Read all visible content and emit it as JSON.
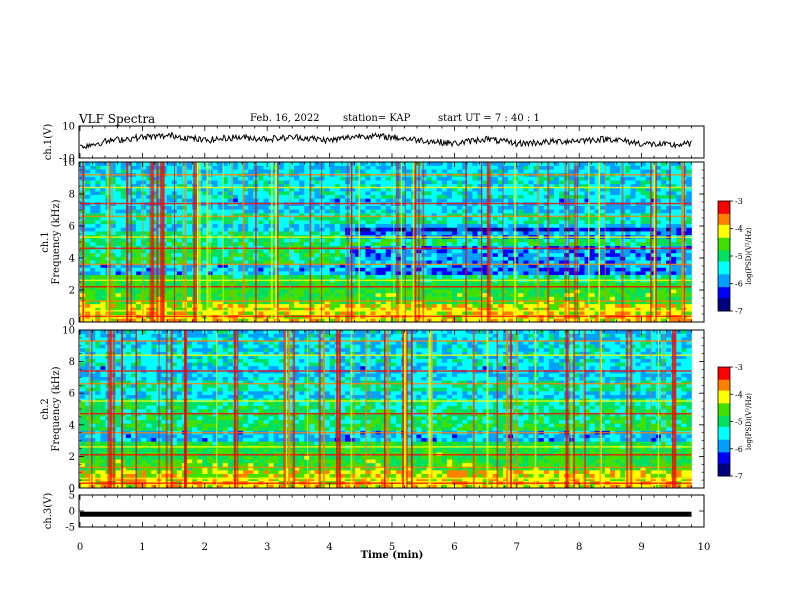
{
  "header": {
    "title": "VLF Spectra",
    "date": "Feb. 16, 2022",
    "station": "station= KAP",
    "start": "start UT =  7 : 40 : 1"
  },
  "colors": {
    "colormap": [
      "#000080",
      "#0000ff",
      "#00a0ff",
      "#00ffff",
      "#00e060",
      "#40e000",
      "#ffff00",
      "#ff8000",
      "#ff0000",
      "#ffffff"
    ],
    "trace": "#000000",
    "axis": "#000000"
  },
  "chart_data": [
    {
      "type": "line",
      "name": "ch1-waveform",
      "ylabel": "ch.1(V)",
      "ylim": [
        -10,
        10
      ],
      "yticks": [
        "10",
        "-10"
      ],
      "x": [
        0,
        0.5,
        1,
        1.5,
        2,
        2.5,
        3,
        3.5,
        4,
        4.5,
        5,
        5.5,
        6,
        6.5,
        7,
        7.5,
        8,
        8.5,
        9,
        9.5,
        9.8
      ],
      "values": [
        -3,
        1,
        3,
        4,
        1,
        3,
        2,
        3,
        1,
        4,
        3,
        1,
        -1,
        2,
        -1,
        0,
        1,
        2,
        -1,
        -2,
        -1
      ]
    },
    {
      "type": "heatmap",
      "name": "ch1-spectrogram",
      "ylabel": "ch.1\nFrequency (kHz)",
      "ylim": [
        0,
        10
      ],
      "yticks": [
        "0",
        "2",
        "4",
        "6",
        "8",
        "10"
      ],
      "colorbar_label": "log(PSD)(V²/Hz)",
      "colorbar_ticks": [
        "-3",
        "-4",
        "-5",
        "-6",
        "-7"
      ],
      "crange": [
        -7,
        -3
      ],
      "change_at_min": 4.25
    },
    {
      "type": "heatmap",
      "name": "ch2-spectrogram",
      "ylabel": "ch.2\nFrequency (kHz)",
      "ylim": [
        0,
        10
      ],
      "yticks": [
        "0",
        "2",
        "4",
        "6",
        "8",
        "10"
      ],
      "colorbar_label": "log(PSD)(V²/Hz)",
      "colorbar_ticks": [
        "-3",
        "-4",
        "-5",
        "-6",
        "-7"
      ],
      "crange": [
        -7,
        -3
      ]
    },
    {
      "type": "line",
      "name": "ch3-waveform",
      "ylabel": "ch.3(V)",
      "ylim": [
        -5,
        5
      ],
      "yticks": [
        "5",
        "0",
        "-5"
      ],
      "x": [
        0,
        9.8
      ],
      "values": [
        -1,
        -1
      ]
    }
  ],
  "xaxis": {
    "label": "Time (min)",
    "ticks": [
      "0",
      "1",
      "2",
      "3",
      "4",
      "5",
      "6",
      "7",
      "8",
      "9",
      "10"
    ],
    "xlim": [
      0,
      10
    ],
    "data_end": 9.8
  }
}
